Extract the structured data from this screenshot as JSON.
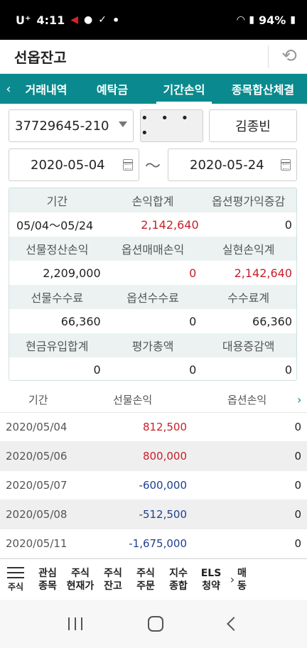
{
  "status_bar": {
    "carrier": "U⁺",
    "time": "4:11",
    "dot": "•",
    "battery": "94%"
  },
  "header": {
    "title": "선옵잔고"
  },
  "tabs": {
    "prev_arrow": "‹",
    "items": [
      {
        "label": "거래내역"
      },
      {
        "label": "예탁금"
      },
      {
        "label": "기간손익"
      },
      {
        "label": "종목합산체결"
      }
    ]
  },
  "account": {
    "number": "37729645-210",
    "password_mask": "• • • •",
    "name": "김종빈"
  },
  "period": {
    "from": "2020-05-04",
    "separator": "～",
    "to": "2020-05-24"
  },
  "summary": {
    "rows": [
      {
        "headers": [
          "기간",
          "손익합계",
          "옵션평가익증감"
        ],
        "values": [
          "05/04～05/24",
          "2,142,640",
          "0"
        ],
        "value_colors": [
          "",
          "red",
          ""
        ]
      },
      {
        "headers": [
          "선물정산손익",
          "옵션매매손익",
          "실현손익계"
        ],
        "values": [
          "2,209,000",
          "0",
          "2,142,640"
        ],
        "value_colors": [
          "",
          "red",
          "red"
        ]
      },
      {
        "headers": [
          "선물수수료",
          "옵션수수료",
          "수수료계"
        ],
        "values": [
          "66,360",
          "0",
          "66,360"
        ],
        "value_colors": [
          "",
          "",
          ""
        ]
      },
      {
        "headers": [
          "현금유입합계",
          "평가총액",
          "대용증감액"
        ],
        "values": [
          "0",
          "0",
          "0"
        ],
        "value_colors": [
          "",
          "",
          ""
        ]
      }
    ]
  },
  "list": {
    "headers": {
      "period": "기간",
      "futures": "선물손익",
      "options": "옵션손익",
      "next": "›"
    },
    "rows": [
      {
        "date": "2020/05/04",
        "futures": "812,500",
        "options": "0",
        "color": "red"
      },
      {
        "date": "2020/05/06",
        "futures": "800,000",
        "options": "0",
        "color": "red"
      },
      {
        "date": "2020/05/07",
        "futures": "-600,000",
        "options": "0",
        "color": "blue"
      },
      {
        "date": "2020/05/08",
        "futures": "-512,500",
        "options": "0",
        "color": "blue"
      },
      {
        "date": "2020/05/11",
        "futures": "-1,675,000",
        "options": "0",
        "color": "blue"
      }
    ]
  },
  "bottom_menu": {
    "burger_label": "주식",
    "items": [
      {
        "label": "관심\n종목"
      },
      {
        "label": "주식\n현재가"
      },
      {
        "label": "주식\n잔고"
      },
      {
        "label": "주식\n주문"
      },
      {
        "label": "지수\n종합"
      },
      {
        "label": "ELS\n청약"
      }
    ],
    "next_arrow": "›",
    "cut_label": "매\n동"
  }
}
